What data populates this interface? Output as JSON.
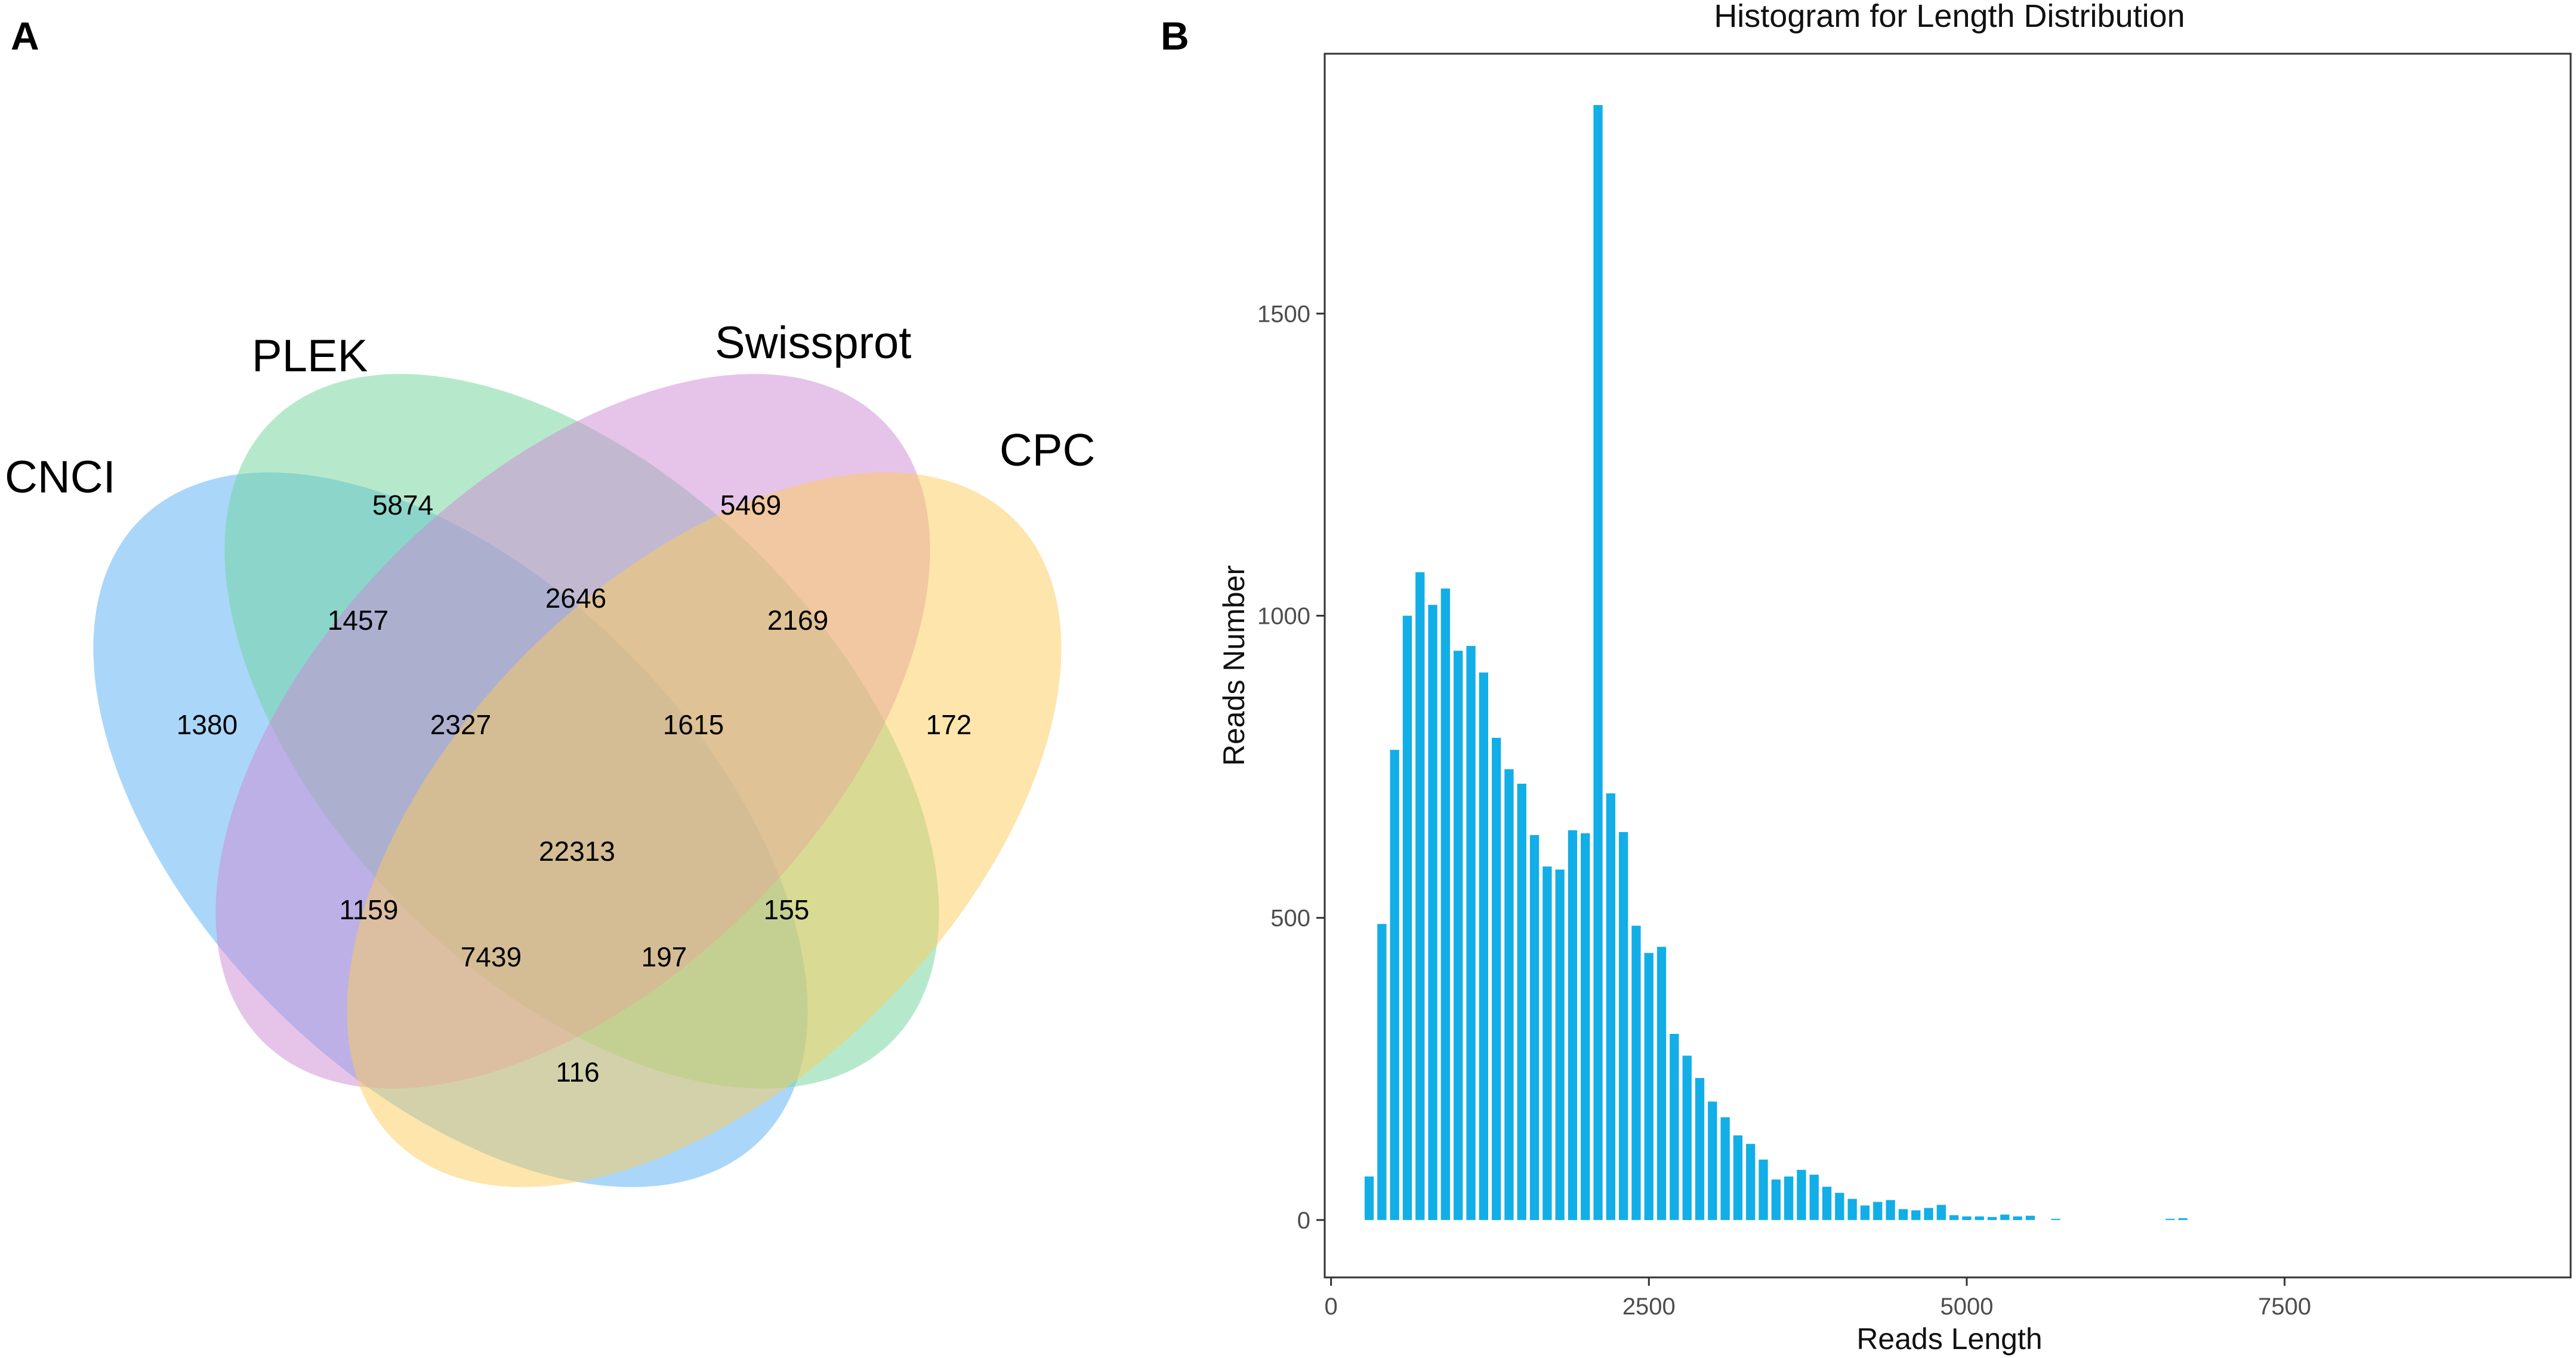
{
  "panel_a": {
    "letter": "A"
  },
  "panel_b": {
    "letter": "B"
  },
  "chart_data": [
    {
      "type": "venn",
      "sets": [
        {
          "name": "CNCI",
          "color": "#56AEF5"
        },
        {
          "name": "PLEK",
          "color": "#6ED49A"
        },
        {
          "name": "Swissprot",
          "color": "#CE8AD4"
        },
        {
          "name": "CPC",
          "color": "#FCCB5A"
        }
      ],
      "regions": [
        {
          "id": "r1",
          "sets": [
            "CNCI"
          ],
          "value": 1380
        },
        {
          "id": "r2",
          "sets": [
            "PLEK"
          ],
          "value": 5874
        },
        {
          "id": "r3",
          "sets": [
            "Swissprot"
          ],
          "value": 5469
        },
        {
          "id": "r4",
          "sets": [
            "CPC"
          ],
          "value": 172
        },
        {
          "id": "r5",
          "sets": [
            "CNCI",
            "PLEK"
          ],
          "value": 1457
        },
        {
          "id": "r6",
          "sets": [
            "PLEK",
            "Swissprot"
          ],
          "value": 2646
        },
        {
          "id": "r7",
          "sets": [
            "Swissprot",
            "CPC"
          ],
          "value": 2169
        },
        {
          "id": "r8",
          "sets": [
            "CNCI",
            "PLEK",
            "Swissprot"
          ],
          "value": 2327
        },
        {
          "id": "r9",
          "sets": [
            "PLEK",
            "Swissprot",
            "CPC"
          ],
          "value": 1615
        },
        {
          "id": "r10",
          "sets": [
            "CNCI",
            "PLEK",
            "Swissprot",
            "CPC"
          ],
          "value": 22313
        },
        {
          "id": "r11",
          "sets": [
            "CNCI",
            "Swissprot"
          ],
          "value": 1159
        },
        {
          "id": "r12",
          "sets": [
            "PLEK",
            "CPC"
          ],
          "value": 155
        },
        {
          "id": "r13",
          "sets": [
            "CNCI",
            "Swissprot",
            "CPC"
          ],
          "value": 7439
        },
        {
          "id": "r14",
          "sets": [
            "CNCI",
            "PLEK",
            "CPC"
          ],
          "value": 197
        },
        {
          "id": "r15",
          "sets": [
            "CNCI",
            "CPC"
          ],
          "value": 116
        }
      ]
    },
    {
      "type": "bar",
      "title": "Histogram for Length Distribution",
      "xlabel": "Reads Length",
      "ylabel": "Reads Number",
      "xlim": [
        -50,
        9750
      ],
      "ylim": [
        -95,
        1930
      ],
      "xticks": [
        0,
        2500,
        5000,
        7500
      ],
      "yticks": [
        0,
        500,
        1000,
        1500
      ],
      "grid": false,
      "bar_color": "#12AEE8",
      "bin_width": 100,
      "x": [
        300,
        400,
        500,
        600,
        700,
        800,
        900,
        1000,
        1100,
        1200,
        1300,
        1400,
        1500,
        1600,
        1700,
        1800,
        1900,
        2000,
        2100,
        2200,
        2300,
        2400,
        2500,
        2600,
        2700,
        2800,
        2900,
        3000,
        3100,
        3200,
        3300,
        3400,
        3500,
        3600,
        3700,
        3800,
        3900,
        4000,
        4100,
        4200,
        4300,
        4400,
        4500,
        4600,
        4700,
        4800,
        4900,
        5000,
        5100,
        5200,
        5300,
        5400,
        5500,
        5700,
        6600,
        6700
      ],
      "values": [
        72,
        490,
        778,
        1000,
        1072,
        1018,
        1045,
        942,
        950,
        906,
        798,
        746,
        722,
        637,
        585,
        580,
        645,
        640,
        1845,
        706,
        642,
        487,
        442,
        452,
        308,
        272,
        235,
        196,
        170,
        140,
        126,
        100,
        67,
        72,
        83,
        75,
        55,
        45,
        35,
        24,
        30,
        33,
        18,
        16,
        20,
        25,
        8,
        6,
        6,
        5,
        9,
        6,
        7,
        2,
        2,
        3
      ]
    }
  ]
}
